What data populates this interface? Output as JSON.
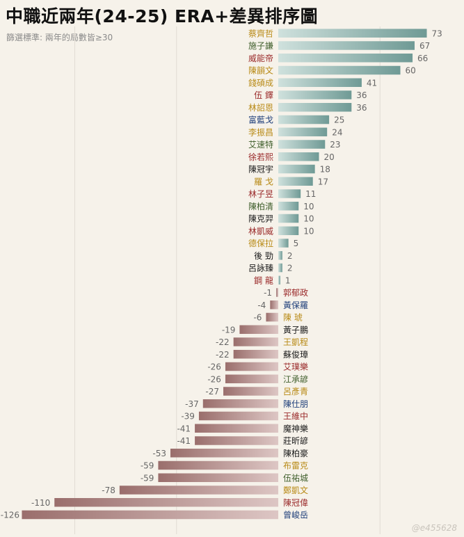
{
  "title": "中職近兩年(24-25) ERA+差異排序圖",
  "subtitle": "篩選標準: 兩年的局數皆≥30",
  "watermark": "@e455628",
  "colors": {
    "bar_pos_light": "#cfe1dd",
    "bar_pos_dark": "#6f9a95",
    "bar_neg_light": "#ddc6c4",
    "bar_neg_dark": "#9a6e6c",
    "grid": "#e1dcd3"
  },
  "chart_data": {
    "type": "bar",
    "orientation": "horizontal",
    "title": "中職近兩年(24-25) ERA+差異排序圖",
    "xlim": [
      -126,
      73
    ],
    "grid": true,
    "team_colors": {
      "green": "#3f5e2b",
      "red": "#9a2a2a",
      "gold": "#b88a16",
      "blue": "#1f3f7a",
      "black": "#1a1a1a"
    },
    "players": [
      {
        "name": "蔡齊哲",
        "value": 73,
        "team": "gold"
      },
      {
        "name": "施子謙",
        "value": 67,
        "team": "green"
      },
      {
        "name": "威能帝",
        "value": 66,
        "team": "red"
      },
      {
        "name": "陳韻文",
        "value": 60,
        "team": "gold"
      },
      {
        "name": "錢碩成",
        "value": 41,
        "team": "gold"
      },
      {
        "name": "伍 鐸",
        "value": 36,
        "team": "red"
      },
      {
        "name": "林詔恩",
        "value": 36,
        "team": "gold"
      },
      {
        "name": "富藍戈",
        "value": 25,
        "team": "blue"
      },
      {
        "name": "李振昌",
        "value": 24,
        "team": "gold"
      },
      {
        "name": "艾速特",
        "value": 23,
        "team": "green"
      },
      {
        "name": "徐若熙",
        "value": 20,
        "team": "red"
      },
      {
        "name": "陳冠宇",
        "value": 18,
        "team": "black"
      },
      {
        "name": "羅 戈",
        "value": 17,
        "team": "gold"
      },
      {
        "name": "林子昱",
        "value": 11,
        "team": "red"
      },
      {
        "name": "陳柏清",
        "value": 10,
        "team": "green"
      },
      {
        "name": "陳克羿",
        "value": 10,
        "team": "black"
      },
      {
        "name": "林凱威",
        "value": 10,
        "team": "red"
      },
      {
        "name": "德保拉",
        "value": 5,
        "team": "gold"
      },
      {
        "name": "後 勁",
        "value": 2,
        "team": "black"
      },
      {
        "name": "呂詠臻",
        "value": 2,
        "team": "black"
      },
      {
        "name": "鋼 龍",
        "value": 1,
        "team": "red"
      },
      {
        "name": "郭郁政",
        "value": -1,
        "team": "red"
      },
      {
        "name": "黃保羅",
        "value": -4,
        "team": "blue"
      },
      {
        "name": "陳 琥",
        "value": -6,
        "team": "gold"
      },
      {
        "name": "黃子鵬",
        "value": -19,
        "team": "black"
      },
      {
        "name": "王凱程",
        "value": -22,
        "team": "gold"
      },
      {
        "name": "蘇俊璋",
        "value": -22,
        "team": "black"
      },
      {
        "name": "艾璞樂",
        "value": -26,
        "team": "red"
      },
      {
        "name": "江承諺",
        "value": -26,
        "team": "green"
      },
      {
        "name": "呂彥青",
        "value": -27,
        "team": "gold"
      },
      {
        "name": "陳仕朋",
        "value": -37,
        "team": "blue"
      },
      {
        "name": "王維中",
        "value": -39,
        "team": "red"
      },
      {
        "name": "魔神樂",
        "value": -41,
        "team": "black"
      },
      {
        "name": "莊昕諺",
        "value": -41,
        "team": "black"
      },
      {
        "name": "陳柏豪",
        "value": -53,
        "team": "black"
      },
      {
        "name": "布雷克",
        "value": -59,
        "team": "gold"
      },
      {
        "name": "伍祐城",
        "value": -59,
        "team": "green"
      },
      {
        "name": "鄭凱文",
        "value": -78,
        "team": "gold"
      },
      {
        "name": "陳冠偉",
        "value": -110,
        "team": "red"
      },
      {
        "name": "曾峻岳",
        "value": -126,
        "team": "blue"
      }
    ]
  }
}
